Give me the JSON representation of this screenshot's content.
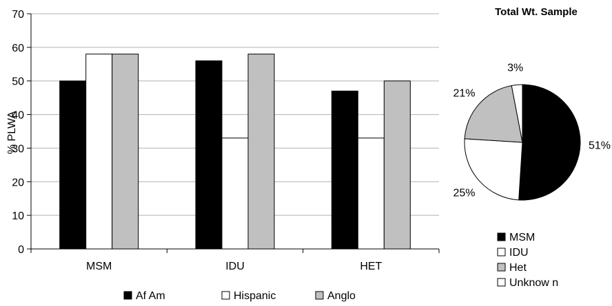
{
  "chart_data": [
    {
      "type": "bar",
      "categories": [
        "MSM",
        "IDU",
        "HET"
      ],
      "series": [
        {
          "name": "Af Am",
          "values": [
            50,
            56,
            47
          ],
          "color": "#000000"
        },
        {
          "name": "Hispanic",
          "values": [
            58,
            33,
            33
          ],
          "color": "#ffffff"
        },
        {
          "name": "Anglo",
          "values": [
            58,
            58,
            50
          ],
          "color": "#c0c0c0"
        }
      ],
      "ylabel": "% PLWA",
      "ylim": [
        0,
        70
      ],
      "yticks": [
        0,
        10,
        20,
        30,
        40,
        50,
        60,
        70
      ],
      "grid": true,
      "legend": "bottom"
    },
    {
      "type": "pie",
      "title": "Total Wt. Sample",
      "labels": [
        "MSM",
        "IDU",
        "Het",
        "Unknow n"
      ],
      "values": [
        51,
        25,
        21,
        3
      ],
      "data_labels": [
        "51%",
        "25%",
        "21%",
        "3%"
      ],
      "colors": [
        "#000000",
        "#ffffff",
        "#c0c0c0",
        "#ffffff"
      ],
      "legend": "bottom"
    }
  ]
}
